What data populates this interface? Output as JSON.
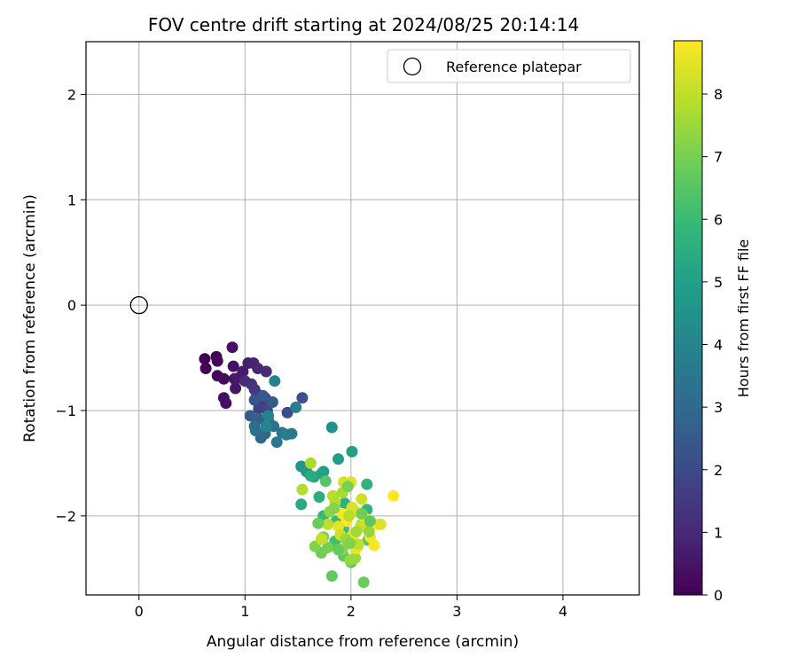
{
  "chart_data": {
    "type": "scatter",
    "title": "FOV centre drift starting at 2024/08/25 20:14:14",
    "xlabel": "Angular distance from reference (arcmin)",
    "ylabel": "Rotation from reference (arcmin)",
    "xlim": [
      -0.5,
      4.72
    ],
    "ylim": [
      -2.75,
      2.5
    ],
    "xticks": [
      0,
      1,
      2,
      3,
      4
    ],
    "yticks": [
      -2,
      -1,
      0,
      1,
      2
    ],
    "grid": true,
    "legend": {
      "placement": "top-right",
      "entries": [
        {
          "label": "Reference platepar",
          "marker": "open-circle"
        }
      ]
    },
    "reference_point": {
      "x": 0,
      "y": 0
    },
    "colorbar": {
      "label": "Hours from first FF file",
      "colormap": "viridis",
      "range": [
        0,
        8.85
      ],
      "ticks": [
        0,
        1,
        2,
        3,
        4,
        5,
        6,
        7,
        8
      ]
    },
    "colormap_stops": [
      "#440154",
      "#482878",
      "#3e4989",
      "#31688e",
      "#26828e",
      "#1f9e89",
      "#35b779",
      "#6ece58",
      "#b5de2b",
      "#fde725"
    ],
    "points": [
      [
        0.62,
        -0.51,
        0.0
      ],
      [
        0.63,
        -0.6,
        0.05
      ],
      [
        0.73,
        -0.49,
        0.1
      ],
      [
        0.74,
        -0.53,
        0.15
      ],
      [
        0.74,
        -0.67,
        0.2
      ],
      [
        0.8,
        -0.7,
        0.25
      ],
      [
        0.8,
        -0.88,
        0.3
      ],
      [
        0.82,
        -0.93,
        0.35
      ],
      [
        0.88,
        -0.4,
        0.4
      ],
      [
        0.89,
        -0.58,
        0.45
      ],
      [
        0.9,
        -0.7,
        0.5
      ],
      [
        0.91,
        -0.79,
        0.55
      ],
      [
        0.94,
        -0.69,
        0.6
      ],
      [
        0.98,
        -0.63,
        0.65
      ],
      [
        1.03,
        -0.55,
        0.75
      ],
      [
        1.08,
        -0.55,
        0.85
      ],
      [
        1.12,
        -0.6,
        0.95
      ],
      [
        1.2,
        -0.63,
        1.05
      ],
      [
        1.0,
        -0.72,
        1.1
      ],
      [
        1.06,
        -0.75,
        1.2
      ],
      [
        1.09,
        -0.8,
        1.3
      ],
      [
        1.11,
        -0.84,
        1.4
      ],
      [
        1.17,
        -0.9,
        1.5
      ],
      [
        1.19,
        -0.88,
        1.6
      ],
      [
        1.13,
        -0.98,
        1.7
      ],
      [
        1.21,
        -1.0,
        1.8
      ],
      [
        1.23,
        -0.93,
        1.9
      ],
      [
        1.4,
        -1.02,
        2.0
      ],
      [
        1.54,
        -0.88,
        2.2
      ],
      [
        1.09,
        -0.9,
        2.3
      ],
      [
        1.17,
        -0.86,
        2.4
      ],
      [
        1.26,
        -0.92,
        2.5
      ],
      [
        1.05,
        -1.05,
        2.6
      ],
      [
        1.13,
        -1.08,
        2.7
      ],
      [
        1.22,
        -1.1,
        2.8
      ],
      [
        1.19,
        -1.22,
        2.9
      ],
      [
        1.15,
        -1.26,
        3.0
      ],
      [
        1.09,
        -1.15,
        3.1
      ],
      [
        1.1,
        -1.19,
        3.2
      ],
      [
        1.27,
        -1.15,
        3.3
      ],
      [
        1.35,
        -1.21,
        3.4
      ],
      [
        1.3,
        -1.3,
        3.5
      ],
      [
        1.44,
        -1.22,
        3.6
      ],
      [
        1.39,
        -1.23,
        3.7
      ],
      [
        1.48,
        -0.97,
        3.8
      ],
      [
        1.28,
        -0.72,
        3.9
      ],
      [
        1.22,
        -1.05,
        4.0
      ],
      [
        1.2,
        -1.15,
        4.1
      ],
      [
        1.82,
        -1.16,
        4.4
      ],
      [
        1.53,
        -1.53,
        4.6
      ],
      [
        1.58,
        -1.58,
        4.7
      ],
      [
        1.74,
        -1.58,
        4.8
      ],
      [
        1.88,
        -1.46,
        4.9
      ],
      [
        2.01,
        -1.39,
        5.0
      ],
      [
        1.72,
        -1.6,
        5.1
      ],
      [
        1.65,
        -1.63,
        5.2
      ],
      [
        1.53,
        -1.89,
        5.3
      ],
      [
        1.62,
        -1.62,
        5.4
      ],
      [
        1.7,
        -1.82,
        5.5
      ],
      [
        1.94,
        -1.88,
        5.6
      ],
      [
        2.15,
        -1.7,
        5.7
      ],
      [
        2.15,
        -1.94,
        5.8
      ],
      [
        1.74,
        -2.0,
        5.9
      ],
      [
        1.86,
        -2.05,
        6.0
      ],
      [
        1.93,
        -2.12,
        6.1
      ],
      [
        1.85,
        -2.24,
        6.2
      ],
      [
        2.06,
        -2.29,
        6.3
      ],
      [
        2.16,
        -2.23,
        6.4
      ],
      [
        2.0,
        -2.44,
        6.5
      ],
      [
        1.93,
        -2.38,
        6.6
      ],
      [
        1.82,
        -2.57,
        6.7
      ],
      [
        2.12,
        -2.63,
        6.8
      ],
      [
        1.72,
        -2.35,
        6.9
      ],
      [
        1.78,
        -2.3,
        7.0
      ],
      [
        1.66,
        -2.29,
        7.1
      ],
      [
        1.74,
        -2.2,
        7.2
      ],
      [
        1.92,
        -2.32,
        7.3
      ],
      [
        1.99,
        -2.42,
        7.4
      ],
      [
        2.04,
        -2.4,
        7.5
      ],
      [
        2.1,
        -2.08,
        7.6
      ],
      [
        1.62,
        -1.5,
        7.7
      ],
      [
        1.54,
        -1.75,
        7.8
      ],
      [
        1.83,
        -1.81,
        7.9
      ],
      [
        1.78,
        -2.08,
        8.0
      ],
      [
        1.72,
        -2.22,
        8.1
      ],
      [
        2.1,
        -1.84,
        8.2
      ],
      [
        1.93,
        -1.68,
        8.3
      ],
      [
        2.0,
        -1.68,
        8.4
      ],
      [
        2.05,
        -1.96,
        8.5
      ],
      [
        2.13,
        -2.02,
        8.6
      ],
      [
        2.18,
        -2.2,
        8.7
      ],
      [
        2.22,
        -2.28,
        8.8
      ],
      [
        1.92,
        -1.98,
        8.8
      ],
      [
        1.96,
        -2.05,
        8.85
      ],
      [
        2.4,
        -1.81,
        8.85
      ],
      [
        2.25,
        -2.08,
        8.85
      ],
      [
        2.02,
        -2.18,
        8.7
      ],
      [
        2.05,
        -2.31,
        8.6
      ],
      [
        1.88,
        -2.1,
        8.5
      ],
      [
        2.28,
        -2.08,
        8.4
      ],
      [
        2.01,
        -1.92,
        8.3
      ],
      [
        1.9,
        -2.18,
        8.2
      ],
      [
        2.09,
        -2.1,
        8.1
      ],
      [
        2.07,
        -2.27,
        8.0
      ],
      [
        1.98,
        -2.0,
        7.9
      ],
      [
        1.85,
        -1.87,
        7.8
      ],
      [
        1.92,
        -1.78,
        7.7
      ],
      [
        2.05,
        -2.15,
        7.6
      ],
      [
        1.95,
        -2.22,
        7.5
      ],
      [
        2.17,
        -2.15,
        7.4
      ],
      [
        1.8,
        -1.96,
        7.3
      ],
      [
        1.84,
        -1.93,
        7.2
      ],
      [
        1.99,
        -2.26,
        7.1
      ],
      [
        1.97,
        -1.72,
        7.0
      ],
      [
        2.1,
        -1.98,
        6.9
      ],
      [
        1.69,
        -2.07,
        6.8
      ],
      [
        1.88,
        -2.32,
        6.7
      ],
      [
        2.18,
        -2.05,
        6.6
      ],
      [
        1.76,
        -1.67,
        6.5
      ]
    ]
  }
}
